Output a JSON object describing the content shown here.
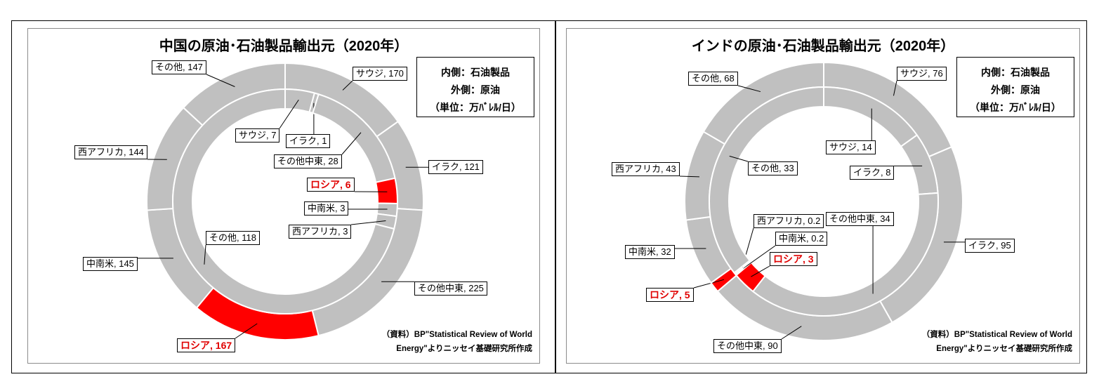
{
  "chart_data": [
    {
      "type": "donut",
      "title": "中国の原油･石油製品輸出元（2020年）",
      "legend_lines": [
        "内側：石油製品",
        "外側：原油",
        "（単位：万ﾊﾞﾚﾙ/日）"
      ],
      "source_lines": [
        "（資料）BP\"Statistical Review of World",
        "Energy\"よりニッセイ基礎研究所作成"
      ],
      "highlight_color": "#ff0000",
      "base_color": "#c0c0c0",
      "outer": [
        {
          "name": "サウジ",
          "value": 170,
          "label": "サウジ, 170"
        },
        {
          "name": "イラク",
          "value": 121,
          "label": "イラク, 121"
        },
        {
          "name": "その他中東",
          "value": 225,
          "label": "その他中東, 225"
        },
        {
          "name": "ロシア",
          "value": 167,
          "label": "ロシア, 167",
          "highlight": true
        },
        {
          "name": "中南米",
          "value": 145,
          "label": "中南米, 145"
        },
        {
          "name": "西アフリカ",
          "value": 144,
          "label": "西アフリカ, 144"
        },
        {
          "name": "その他",
          "value": 147,
          "label": "その他, 147"
        }
      ],
      "inner": [
        {
          "name": "サウジ",
          "value": 7,
          "label": "サウジ, 7"
        },
        {
          "name": "イラク",
          "value": 1,
          "label": "イラク, 1"
        },
        {
          "name": "その他中東",
          "value": 28,
          "label": "その他中東, 28"
        },
        {
          "name": "ロシア",
          "value": 6,
          "label": "ロシア, 6",
          "highlight": true
        },
        {
          "name": "中南米",
          "value": 3,
          "label": "中南米, 3"
        },
        {
          "name": "西アフリカ",
          "value": 3,
          "label": "西アフリカ, 3"
        },
        {
          "name": "その他",
          "value": 118,
          "label": "その他, 118"
        }
      ]
    },
    {
      "type": "donut",
      "title": "インドの原油･石油製品輸出元（2020年）",
      "legend_lines": [
        "内側：石油製品",
        "外側：原油",
        "（単位：万ﾊﾞﾚﾙ/日）"
      ],
      "source_lines": [
        "（資料）BP\"Statistical Review of World",
        "Energy\"よりニッセイ基礎研究所作成"
      ],
      "highlight_color": "#ff0000",
      "base_color": "#c0c0c0",
      "outer": [
        {
          "name": "サウジ",
          "value": 76,
          "label": "サウジ, 76"
        },
        {
          "name": "イラク",
          "value": 95,
          "label": "イラク, 95"
        },
        {
          "name": "その他中東",
          "value": 90,
          "label": "その他中東, 90"
        },
        {
          "name": "ロシア",
          "value": 5,
          "label": "ロシア, 5",
          "highlight": true
        },
        {
          "name": "中南米",
          "value": 32,
          "label": "中南米, 32"
        },
        {
          "name": "西アフリカ",
          "value": 43,
          "label": "西アフリカ, 43"
        },
        {
          "name": "その他",
          "value": 68,
          "label": "その他, 68"
        }
      ],
      "inner": [
        {
          "name": "サウジ",
          "value": 14,
          "label": "サウジ, 14"
        },
        {
          "name": "イラク",
          "value": 8,
          "label": "イラク, 8"
        },
        {
          "name": "その他中東",
          "value": 34,
          "label": "その他中東, 34"
        },
        {
          "name": "ロシア",
          "value": 3,
          "label": "ロシア, 3",
          "highlight": true
        },
        {
          "name": "中南米",
          "value": 0.2,
          "label": "中南米, 0.2"
        },
        {
          "name": "西アフリカ",
          "value": 0.2,
          "label": "西アフリカ, 0.2"
        },
        {
          "name": "その他",
          "value": 33,
          "label": "その他, 33"
        }
      ]
    }
  ]
}
